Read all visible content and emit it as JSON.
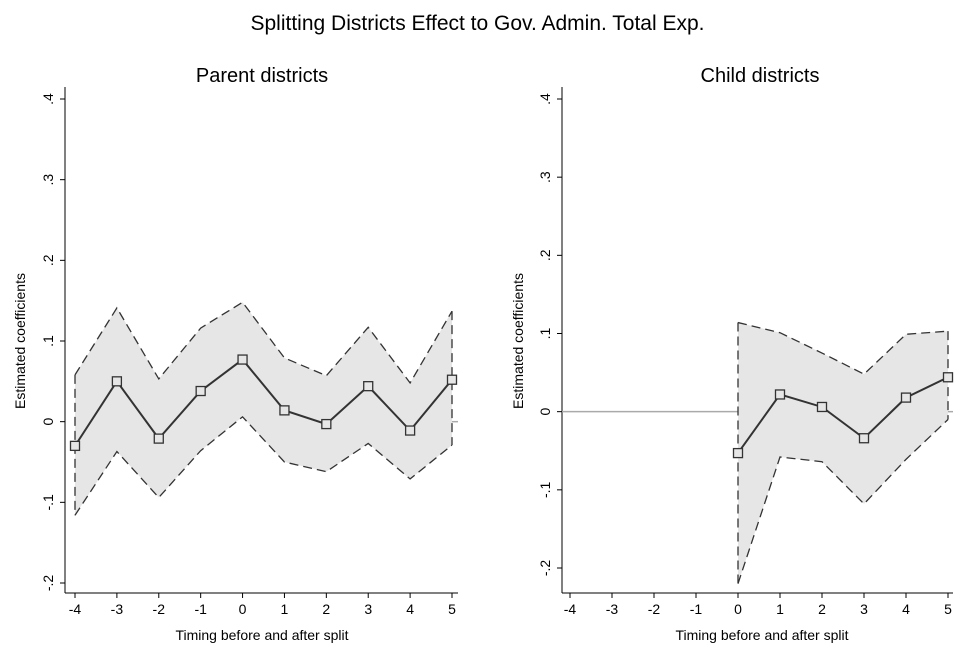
{
  "figure_title": "Splitting Districts Effect to Gov. Admin. Total Exp.",
  "colors": {
    "ci_fill": "#e6e6e6",
    "ci_line": "#333333",
    "estimate_line": "#333333",
    "zero_line": "#aaaaaa",
    "axis": "#000000"
  },
  "chart_data": [
    {
      "type": "line",
      "title": "Parent districts",
      "xlabel": "Timing before and after split",
      "ylabel": "Estimated coefficients",
      "x": [
        -4,
        -3,
        -2,
        -1,
        0,
        1,
        2,
        3,
        4,
        5
      ],
      "x_ticks": [
        "-4",
        "-3",
        "-2",
        "-1",
        "0",
        "1",
        "2",
        "3",
        "4",
        "5"
      ],
      "y_ticks": [
        {
          "value": -0.2,
          "label": "-.2"
        },
        {
          "value": -0.1,
          "label": "-.1"
        },
        {
          "value": 0,
          "label": "0"
        },
        {
          "value": 0.1,
          "label": ".1"
        },
        {
          "value": 0.2,
          "label": ".2"
        },
        {
          "value": 0.3,
          "label": ".3"
        },
        {
          "value": 0.4,
          "label": ".4"
        }
      ],
      "ylim": [
        -0.2,
        0.4
      ],
      "xlim": [
        -4,
        5
      ],
      "zero_line_from": 5,
      "series": [
        {
          "role": "estimate",
          "values": [
            -0.03,
            0.05,
            -0.021,
            0.038,
            0.077,
            0.014,
            -0.003,
            0.044,
            -0.011,
            0.052
          ]
        },
        {
          "role": "upper",
          "values": [
            0.058,
            0.141,
            0.053,
            0.116,
            0.148,
            0.079,
            0.057,
            0.117,
            0.048,
            0.137
          ]
        },
        {
          "role": "lower",
          "values": [
            -0.116,
            -0.037,
            -0.094,
            -0.036,
            0.006,
            -0.05,
            -0.062,
            -0.027,
            -0.071,
            -0.029
          ]
        }
      ],
      "grid": false,
      "legend": "none"
    },
    {
      "type": "line",
      "title": "Child districts",
      "xlabel": "Timing before and after split",
      "ylabel": "Estimated coefficients",
      "x": [
        0,
        1,
        2,
        3,
        4,
        5
      ],
      "x_ticks": [
        "-4",
        "-3",
        "-2",
        "-1",
        "0",
        "1",
        "2",
        "3",
        "4",
        "5"
      ],
      "y_ticks": [
        {
          "value": -0.2,
          "label": "-.2"
        },
        {
          "value": -0.1,
          "label": "-.1"
        },
        {
          "value": 0,
          "label": "0"
        },
        {
          "value": 0.1,
          "label": ".1"
        },
        {
          "value": 0.2,
          "label": ".2"
        },
        {
          "value": 0.3,
          "label": ".3"
        },
        {
          "value": 0.4,
          "label": ".4"
        }
      ],
      "ylim": [
        -0.2,
        0.4
      ],
      "xlim": [
        -4,
        5
      ],
      "zero_line_segments": [
        [
          -4,
          0
        ],
        [
          5,
          5
        ]
      ],
      "series": [
        {
          "role": "estimate",
          "values": [
            -0.053,
            0.022,
            0.006,
            -0.034,
            0.018,
            0.044
          ]
        },
        {
          "role": "upper",
          "values": [
            0.114,
            0.101,
            0.075,
            0.048,
            0.099,
            0.103
          ]
        },
        {
          "role": "lower",
          "values": [
            -0.22,
            -0.058,
            -0.064,
            -0.118,
            -0.061,
            -0.01
          ]
        }
      ],
      "grid": false,
      "legend": "none"
    }
  ]
}
